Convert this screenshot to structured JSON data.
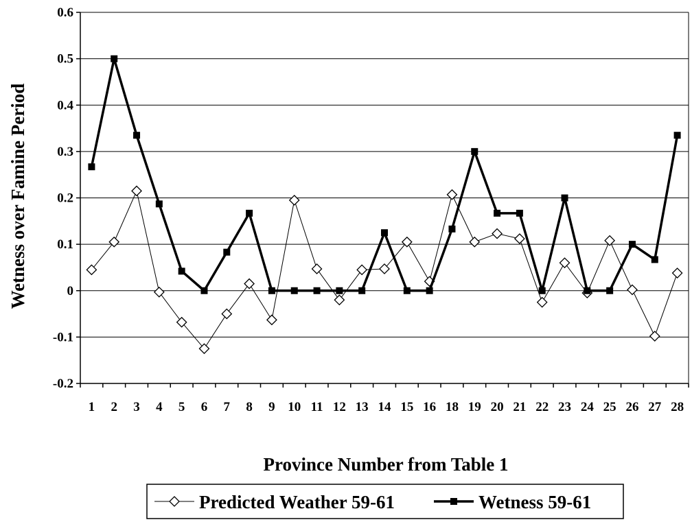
{
  "chart_data": {
    "type": "line",
    "title": "",
    "xlabel": "Province Number from Table 1",
    "ylabel": "Wetness over Famine Period",
    "ylim": [
      -0.2,
      0.6
    ],
    "yticks": [
      "-0.2",
      "-0.1",
      "0",
      "0.1",
      "0.2",
      "0.3",
      "0.4",
      "0.5",
      "0.6"
    ],
    "categories": [
      "1",
      "2",
      "3",
      "4",
      "5",
      "6",
      "7",
      "8",
      "9",
      "10",
      "11",
      "12",
      "13",
      "14",
      "15",
      "16",
      "18",
      "19",
      "20",
      "21",
      "22",
      "23",
      "24",
      "25",
      "26",
      "27",
      "28"
    ],
    "grid": "horizontal",
    "legend_position": "bottom",
    "series": [
      {
        "name": "Predicted Weather 59-61",
        "marker": "open-diamond",
        "line_style": "thin",
        "color": "#000000",
        "values": [
          0.045,
          0.105,
          0.215,
          -0.003,
          -0.068,
          -0.125,
          -0.05,
          0.015,
          -0.063,
          0.195,
          0.047,
          -0.02,
          0.045,
          0.047,
          0.105,
          0.02,
          0.207,
          0.105,
          0.123,
          0.112,
          -0.025,
          0.06,
          -0.005,
          0.108,
          0.002,
          -0.098,
          0.038
        ]
      },
      {
        "name": "Wetness 59-61",
        "marker": "filled-square",
        "line_style": "thick",
        "color": "#000000",
        "values": [
          0.267,
          0.5,
          0.335,
          0.187,
          0.042,
          0.0,
          0.083,
          0.167,
          0.0,
          0.0,
          0.0,
          0.0,
          0.0,
          0.125,
          0.0,
          0.0,
          0.133,
          0.3,
          0.167,
          0.167,
          0.0,
          0.2,
          0.0,
          0.0,
          0.1,
          0.067,
          0.335
        ]
      }
    ]
  }
}
